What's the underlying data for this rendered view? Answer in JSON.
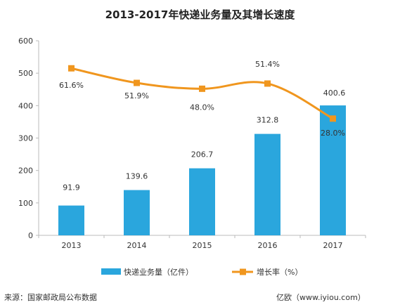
{
  "title": "2013-2017年快递业务量及其增长速度",
  "source": "来源：国家邮政局公布数据",
  "brand": "亿欧（www.iyiou.com）",
  "colors": {
    "bar": "#2aa6dd",
    "line": "#f0961e",
    "axis": "#bbbbbb",
    "text": "#333333"
  },
  "chart_data": {
    "type": "bar",
    "categories": [
      "2013",
      "2014",
      "2015",
      "2016",
      "2017"
    ],
    "ylim": [
      0,
      600
    ],
    "yticks": [
      0,
      100,
      200,
      300,
      400,
      500,
      600
    ],
    "grid": false,
    "legend": "bottom",
    "series": [
      {
        "name": "快递业务量（亿件）",
        "type": "bar",
        "values": [
          91.9,
          139.6,
          206.7,
          312.8,
          400.6
        ],
        "labels": [
          "91.9",
          "139.6",
          "206.7",
          "312.8",
          "400.6"
        ]
      },
      {
        "name": "增长率（%）",
        "type": "line",
        "values": [
          61.6,
          51.9,
          48.0,
          51.4,
          28.0
        ],
        "labels": [
          "61.6%",
          "51.9%",
          "48.0%",
          "51.4%",
          "28.0%"
        ],
        "plotted_on_left_axis_as": [
          515,
          470,
          452,
          468,
          360
        ]
      }
    ]
  }
}
